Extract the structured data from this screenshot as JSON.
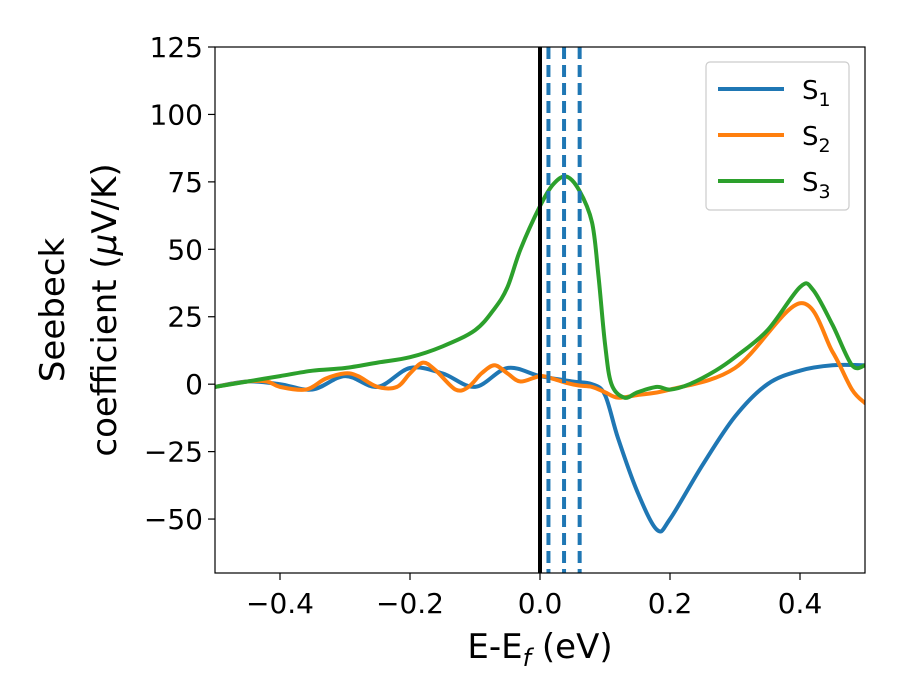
{
  "chart_data": {
    "type": "line",
    "xlabel": {
      "main": "E-E",
      "sub": "f",
      "unit": " (eV)"
    },
    "ylabel": {
      "line1": "Seebeck",
      "line2_prefix": "coefficient  (",
      "mu": "μ",
      "line2_suffix": "V/K)"
    },
    "xlim": [
      -0.5,
      0.5
    ],
    "ylim": [
      -70,
      125
    ],
    "xticks": [
      -0.4,
      -0.2,
      0.0,
      0.2,
      0.4
    ],
    "xtick_labels": [
      "−0.4",
      "−0.2",
      "0.0",
      "0.2",
      "0.4"
    ],
    "yticks": [
      -50,
      -25,
      0,
      25,
      50,
      75,
      100,
      125
    ],
    "ytick_labels": [
      "−50",
      "−25",
      "0",
      "25",
      "50",
      "75",
      "100",
      "125"
    ],
    "grid": false,
    "legend_position": "top-right",
    "colors": {
      "S1": "#1f77b4",
      "S2": "#ff7f0e",
      "S3": "#2ca02c",
      "fermi": "#000000",
      "dashed": "#1f77b4"
    },
    "fermi_line_x": 0.0,
    "dashed_lines_x": [
      0.013,
      0.037,
      0.061
    ],
    "series": [
      {
        "key": "S1",
        "name": "S",
        "sub": "1",
        "color": "#1f77b4",
        "x": [
          -0.5,
          -0.45,
          -0.4,
          -0.35,
          -0.3,
          -0.25,
          -0.2,
          -0.15,
          -0.1,
          -0.05,
          0.0,
          0.05,
          0.08,
          0.1,
          0.12,
          0.15,
          0.18,
          0.2,
          0.25,
          0.3,
          0.35,
          0.4,
          0.45,
          0.5
        ],
        "y": [
          -1,
          1,
          0,
          -2,
          3,
          -1,
          6,
          4,
          -1,
          6,
          3,
          1,
          0,
          -4,
          -20,
          -40,
          -54,
          -50,
          -30,
          -12,
          0,
          5,
          7,
          7
        ]
      },
      {
        "key": "S2",
        "name": "S",
        "sub": "2",
        "color": "#ff7f0e",
        "x": [
          -0.5,
          -0.45,
          -0.42,
          -0.4,
          -0.36,
          -0.33,
          -0.3,
          -0.28,
          -0.25,
          -0.22,
          -0.2,
          -0.18,
          -0.16,
          -0.13,
          -0.11,
          -0.09,
          -0.07,
          -0.05,
          -0.03,
          0.0,
          0.02,
          0.04,
          0.06,
          0.08,
          0.1,
          0.12,
          0.15,
          0.2,
          0.3,
          0.4,
          0.45,
          0.48,
          0.5
        ],
        "y": [
          -1,
          1,
          1,
          -1,
          -2,
          2,
          4,
          3,
          -1,
          -1,
          4,
          8,
          5,
          -2,
          -1,
          4,
          7,
          4,
          1,
          3,
          2,
          0.5,
          -0.5,
          -1,
          -3,
          -5,
          -4,
          -2,
          6,
          30,
          12,
          -2,
          -7
        ]
      },
      {
        "key": "S3",
        "name": "S",
        "sub": "3",
        "color": "#2ca02c",
        "x": [
          -0.5,
          -0.45,
          -0.4,
          -0.35,
          -0.3,
          -0.25,
          -0.2,
          -0.15,
          -0.1,
          -0.07,
          -0.05,
          -0.03,
          0.0,
          0.02,
          0.04,
          0.06,
          0.08,
          0.09,
          0.1,
          0.11,
          0.13,
          0.15,
          0.18,
          0.2,
          0.23,
          0.27,
          0.3,
          0.35,
          0.4,
          0.42,
          0.45,
          0.48,
          0.5
        ],
        "y": [
          -1,
          1,
          3,
          5,
          6,
          8,
          10,
          14,
          20,
          28,
          36,
          50,
          66,
          74,
          77,
          72,
          60,
          40,
          15,
          0,
          -5,
          -3,
          -1,
          -2,
          0,
          5,
          10,
          20,
          36,
          35,
          22,
          7,
          7
        ]
      }
    ]
  }
}
